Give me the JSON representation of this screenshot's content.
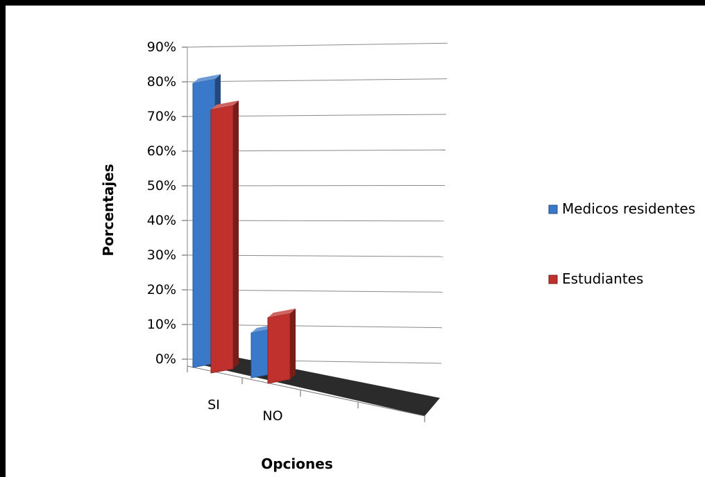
{
  "chart_data": {
    "type": "bar",
    "categories": [
      "SI",
      "NO"
    ],
    "series": [
      {
        "name": "Medicos residentes",
        "values": [
          0.82,
          0.13
        ],
        "color": "#3a78c9"
      },
      {
        "name": "Estudiantes",
        "values": [
          0.76,
          0.19
        ],
        "color": "#c0302c"
      }
    ],
    "xlabel": "Opciones",
    "ylabel": "Porcentajes",
    "ylim": [
      0,
      0.9
    ],
    "yticks": [
      "0%",
      "10%",
      "20%",
      "30%",
      "40%",
      "50%",
      "60%",
      "70%",
      "80%",
      "90%"
    ],
    "grid": true,
    "three_d": true,
    "legend_position": "right",
    "floor_color": "#2b2b2b"
  }
}
